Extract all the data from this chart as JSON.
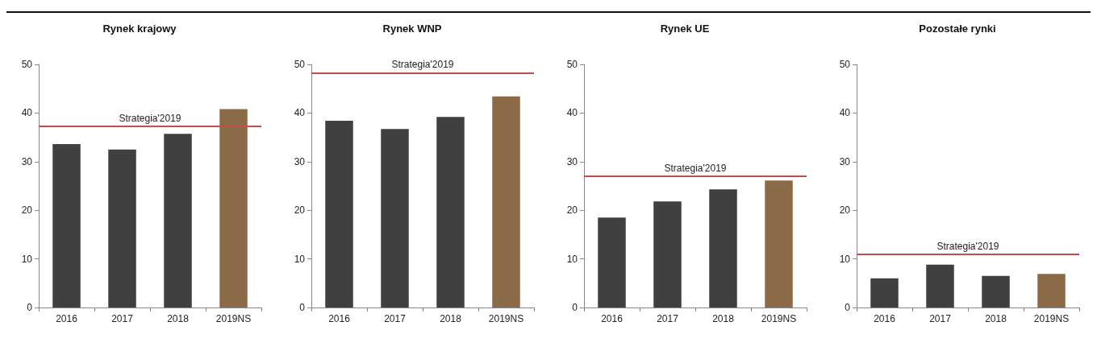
{
  "chart_data": [
    {
      "type": "bar",
      "title": "Rynek krajowy",
      "categories": [
        "2016",
        "2017",
        "2018",
        "2019NS"
      ],
      "values": [
        33.6,
        32.5,
        35.7,
        40.8
      ],
      "colors": [
        "#404040",
        "#404040",
        "#404040",
        "#8b6a47"
      ],
      "ylim": [
        0,
        50
      ],
      "yticks": [
        0,
        10,
        20,
        30,
        40,
        50
      ],
      "grid": false,
      "ref_lines": [
        {
          "axis": "y",
          "value": 37.3,
          "label": "Strategia'2019",
          "color": "#c0504d"
        }
      ]
    },
    {
      "type": "bar",
      "title": "Rynek WNP",
      "categories": [
        "2016",
        "2017",
        "2018",
        "2019NS"
      ],
      "values": [
        38.4,
        36.7,
        39.2,
        43.4
      ],
      "colors": [
        "#404040",
        "#404040",
        "#404040",
        "#8b6a47"
      ],
      "ylim": [
        0,
        50
      ],
      "yticks": [
        0,
        10,
        20,
        30,
        40,
        50
      ],
      "grid": false,
      "ref_lines": [
        {
          "axis": "y",
          "value": 48.3,
          "label": "Strategia'2019",
          "color": "#c0504d"
        }
      ]
    },
    {
      "type": "bar",
      "title": "Rynek UE",
      "categories": [
        "2016",
        "2017",
        "2018",
        "2019NS"
      ],
      "values": [
        18.5,
        21.8,
        24.3,
        26.1
      ],
      "colors": [
        "#404040",
        "#404040",
        "#404040",
        "#8b6a47"
      ],
      "ylim": [
        0,
        50
      ],
      "yticks": [
        0,
        10,
        20,
        30,
        40,
        50
      ],
      "grid": false,
      "ref_lines": [
        {
          "axis": "y",
          "value": 27.0,
          "label": "Strategia'2019",
          "color": "#c0504d"
        }
      ]
    },
    {
      "type": "bar",
      "title": "Pozostałe rynki",
      "categories": [
        "2016",
        "2017",
        "2018",
        "2019NS"
      ],
      "values": [
        6.0,
        8.8,
        6.5,
        6.9
      ],
      "colors": [
        "#404040",
        "#404040",
        "#404040",
        "#8b6a47"
      ],
      "ylim": [
        0,
        50
      ],
      "yticks": [
        0,
        10,
        20,
        30,
        40,
        50
      ],
      "grid": false,
      "ref_lines": [
        {
          "axis": "y",
          "value": 11.0,
          "label": "Strategia'2019",
          "color": "#c0504d"
        }
      ]
    }
  ]
}
